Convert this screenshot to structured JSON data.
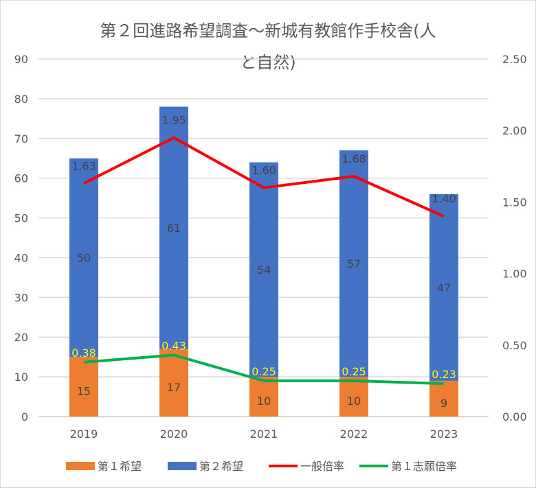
{
  "chart_data": {
    "type": "bar",
    "title_line1": "第２回進路希望調査～新城有教館作手校舎(人",
    "title_line2": "と自然)",
    "categories": [
      "2019",
      "2020",
      "2021",
      "2022",
      "2023"
    ],
    "y_left": {
      "range": [
        0,
        90
      ],
      "ticks": [
        "0",
        "10",
        "20",
        "30",
        "40",
        "50",
        "60",
        "70",
        "80",
        "90"
      ]
    },
    "y_right": {
      "range": [
        0,
        2.5
      ],
      "ticks": [
        "0.00",
        "0.50",
        "1.00",
        "1.50",
        "2.00",
        "2.50"
      ]
    },
    "grid": true,
    "legend_position": "bottom",
    "series": [
      {
        "name": "第１希望",
        "kind": "stacked-bar",
        "axis": "left",
        "color": "#ED7D31",
        "values": [
          15,
          17,
          10,
          10,
          9
        ],
        "labels": [
          "15",
          "17",
          "10",
          "10",
          "9"
        ]
      },
      {
        "name": "第２希望",
        "kind": "stacked-bar",
        "axis": "left",
        "color": "#4472C4",
        "values": [
          50,
          61,
          54,
          57,
          47
        ],
        "labels": [
          "50",
          "61",
          "54",
          "57",
          "47"
        ]
      },
      {
        "name": "一般倍率",
        "kind": "line",
        "axis": "right",
        "color": "#FF0000",
        "values": [
          1.63,
          1.95,
          1.6,
          1.68,
          1.4
        ],
        "labels": [
          "1.63",
          "1.95",
          "1.60",
          "1.68",
          "1.40"
        ]
      },
      {
        "name": "第１志願倍率",
        "kind": "line",
        "axis": "right",
        "color": "#00B050",
        "values": [
          0.38,
          0.43,
          0.25,
          0.25,
          0.23
        ],
        "labels": [
          "0.38",
          "0.43",
          "0.25",
          "0.25",
          "0.23"
        ]
      }
    ]
  }
}
